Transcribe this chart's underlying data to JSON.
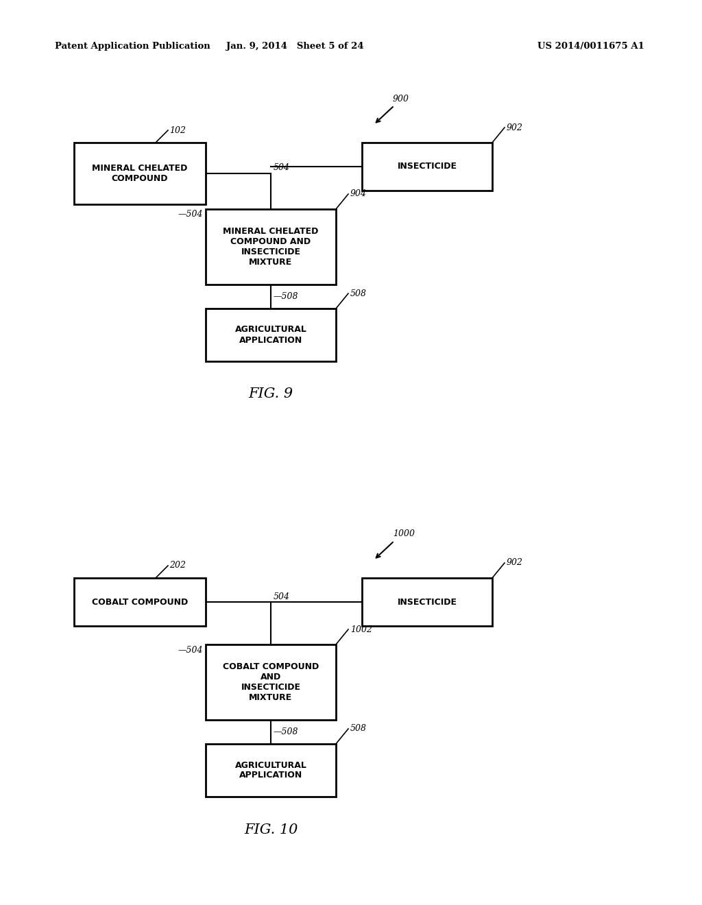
{
  "bg_color": "#ffffff",
  "header_left": "Patent Application Publication",
  "header_center": "Jan. 9, 2014   Sheet 5 of 24",
  "header_right": "US 2014/0011675 A1",
  "fig9_title": "FIG. 9",
  "fig10_title": "FIG. 10",
  "fig9": {
    "label": "900",
    "mineral": {
      "text": "MINERAL CHELATED\nCOMPOUND",
      "ref": "102"
    },
    "insecticide": {
      "text": "INSECTICIDE",
      "ref": "902"
    },
    "mixture": {
      "text": "MINERAL CHELATED\nCOMPOUND AND\nINSECTICIDE\nMIXTURE",
      "ref": "904"
    },
    "app": {
      "text": "AGRICULTURAL\nAPPLICATION",
      "ref": "508"
    }
  },
  "fig10": {
    "label": "1000",
    "cobalt": {
      "text": "COBALT COMPOUND",
      "ref": "202"
    },
    "insecticide": {
      "text": "INSECTICIDE",
      "ref": "902"
    },
    "mixture": {
      "text": "COBALT COMPOUND\nAND\nINSECTICIDE\nMIXTURE",
      "ref": "1002"
    },
    "app": {
      "text": "AGRICULTURAL\nAPPLICATION",
      "ref": "508"
    }
  }
}
